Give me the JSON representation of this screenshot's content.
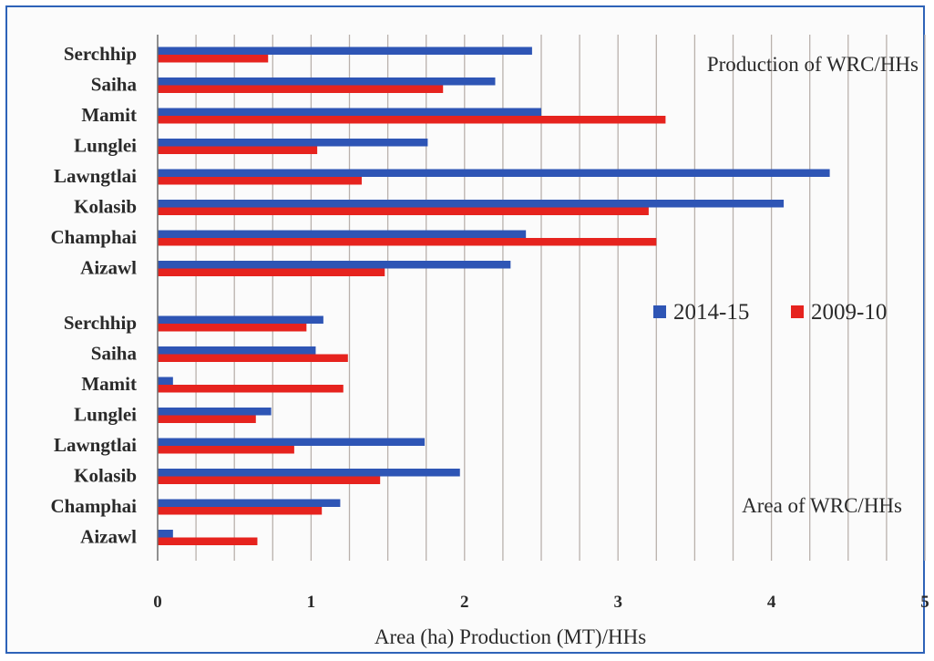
{
  "chart_data": {
    "type": "bar",
    "orientation": "horizontal",
    "xlabel": "Area (ha) Production (MT)/HHs",
    "xlim": [
      0,
      5
    ],
    "x_ticks": [
      "0",
      "1",
      "2",
      "3",
      "4",
      "5"
    ],
    "grid": "vertical minor gridlines every 0.25",
    "legend_position": "right-middle",
    "colors": {
      "2014-15": "#2e55b5",
      "2009-10": "#e6231e"
    },
    "panels": [
      {
        "annotation": "Production of WRC/HHs",
        "categories": [
          "Serchhip",
          "Saiha",
          "Mamit",
          "Lunglei",
          "Lawngtlai",
          "Kolasib",
          "Champhai",
          "Aizawl"
        ],
        "series": [
          {
            "name": "2014-15",
            "values": [
              2.44,
              2.2,
              2.5,
              1.76,
              4.38,
              4.08,
              2.4,
              2.3
            ]
          },
          {
            "name": "2009-10",
            "values": [
              0.72,
              1.86,
              3.31,
              1.04,
              1.33,
              3.2,
              3.25,
              1.48
            ]
          }
        ]
      },
      {
        "annotation": "Area of WRC/HHs",
        "categories": [
          "Serchhip",
          "Saiha",
          "Mamit",
          "Lunglei",
          "Lawngtlai",
          "Kolasib",
          "Champhai",
          "Aizawl"
        ],
        "series": [
          {
            "name": "2014-15",
            "values": [
              1.08,
              1.03,
              0.1,
              0.74,
              1.74,
              1.97,
              1.19,
              0.1
            ]
          },
          {
            "name": "2009-10",
            "values": [
              0.97,
              1.24,
              1.21,
              0.64,
              0.89,
              1.45,
              1.07,
              0.65
            ]
          }
        ]
      }
    ]
  }
}
